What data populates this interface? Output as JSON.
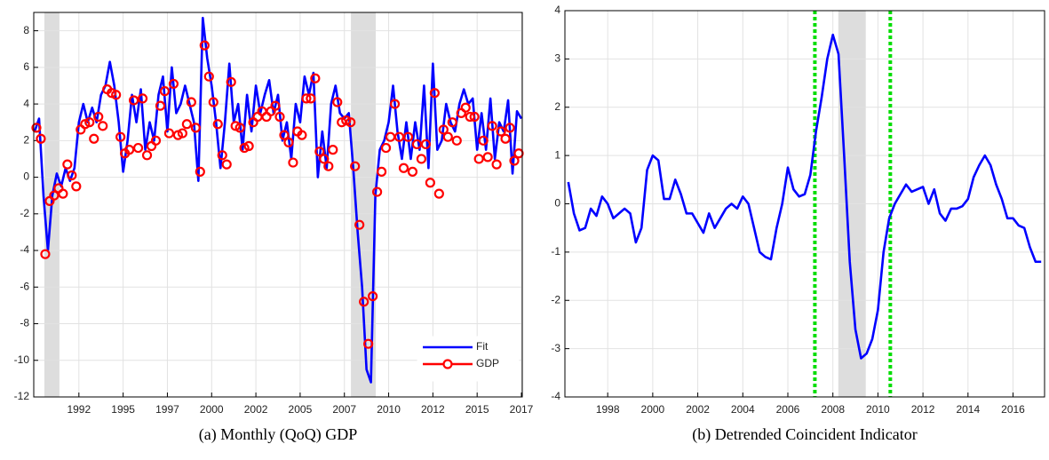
{
  "chart_data": [
    {
      "type": "line",
      "caption": "(a) Monthly (QoQ) GDP",
      "legend": "lower right",
      "grid": true,
      "xlim": [
        1989.45,
        2017.05
      ],
      "ylim": [
        -12,
        9
      ],
      "xticks": [
        {
          "value": 1992,
          "label": "1992"
        },
        {
          "value": 1994.5,
          "label": "1995"
        },
        {
          "value": 1997,
          "label": "1997"
        },
        {
          "value": 1999.5,
          "label": "2000"
        },
        {
          "value": 2002,
          "label": "2002"
        },
        {
          "value": 2004.5,
          "label": "2005"
        },
        {
          "value": 2007,
          "label": "2007"
        },
        {
          "value": 2009.5,
          "label": "2010"
        },
        {
          "value": 2012,
          "label": "2012"
        },
        {
          "value": 2014.5,
          "label": "2015"
        },
        {
          "value": 2017,
          "label": "2017"
        }
      ],
      "yticks": [
        -12,
        -10,
        -8,
        -6,
        -4,
        -2,
        0,
        2,
        4,
        6,
        8
      ],
      "shaded": [
        [
          1990.05,
          1990.9
        ],
        [
          2007.37,
          2008.77
        ]
      ],
      "shade_color": "#dddddd",
      "series": [
        {
          "name": "Fit",
          "color": "#0000ff",
          "marker": "none",
          "x": [
            1989.5,
            1989.75,
            1990,
            1990.25,
            1990.5,
            1990.75,
            1991,
            1991.25,
            1991.5,
            1991.75,
            1992,
            1992.25,
            1992.5,
            1992.75,
            1993,
            1993.25,
            1993.5,
            1993.75,
            1994,
            1994.25,
            1994.5,
            1994.75,
            1995,
            1995.25,
            1995.5,
            1995.75,
            1996,
            1996.25,
            1996.5,
            1996.75,
            1997,
            1997.25,
            1997.5,
            1997.75,
            1998,
            1998.25,
            1998.5,
            1998.75,
            1999,
            1999.25,
            1999.5,
            1999.75,
            2000,
            2000.25,
            2000.5,
            2000.75,
            2001,
            2001.25,
            2001.5,
            2001.75,
            2002,
            2002.25,
            2002.5,
            2002.75,
            2003,
            2003.25,
            2003.5,
            2003.75,
            2004,
            2004.25,
            2004.5,
            2004.75,
            2005,
            2005.25,
            2005.5,
            2005.75,
            2006,
            2006.25,
            2006.5,
            2006.75,
            2007,
            2007.25,
            2007.5,
            2007.75,
            2008,
            2008.25,
            2008.5,
            2008.75,
            2009,
            2009.25,
            2009.5,
            2009.75,
            2010,
            2010.25,
            2010.5,
            2010.75,
            2011,
            2011.25,
            2011.5,
            2011.75,
            2012,
            2012.25,
            2012.5,
            2012.75,
            2013,
            2013.25,
            2013.5,
            2013.75,
            2014,
            2014.25,
            2014.5,
            2014.75,
            2015,
            2015.25,
            2015.5,
            2015.75,
            2016,
            2016.25,
            2016.5,
            2016.75,
            2017
          ],
          "values": [
            2.5,
            3.2,
            -1.0,
            -4.0,
            -1.0,
            0.2,
            -0.5,
            0.5,
            -0.2,
            0.5,
            3.0,
            4.0,
            3.0,
            3.8,
            3.0,
            4.5,
            5.0,
            6.3,
            5.0,
            3.0,
            0.3,
            2.0,
            4.5,
            3.0,
            4.8,
            1.5,
            3.0,
            2.0,
            4.5,
            5.5,
            2.5,
            6.0,
            3.5,
            4.0,
            5.0,
            4.0,
            3.0,
            -0.2,
            8.7,
            6.5,
            5.0,
            3.0,
            0.5,
            3.0,
            6.2,
            3.0,
            4.0,
            1.5,
            4.5,
            2.5,
            5.0,
            3.5,
            4.5,
            5.3,
            3.5,
            4.5,
            2.0,
            3.0,
            1.0,
            4.0,
            3.0,
            5.5,
            4.5,
            5.7,
            0.0,
            2.5,
            0.5,
            4.0,
            5.0,
            3.5,
            3.2,
            3.5,
            0.5,
            -3.0,
            -6.0,
            -10.5,
            -11.2,
            -1.0,
            1.5,
            2.0,
            3.0,
            5.0,
            2.5,
            1.0,
            3.0,
            1.0,
            3.0,
            1.5,
            5.0,
            0.5,
            6.2,
            1.5,
            2.0,
            4.0,
            3.0,
            2.5,
            4.0,
            4.8,
            4.0,
            4.3,
            1.5,
            3.5,
            1.5,
            4.3,
            1.0,
            3.0,
            2.5,
            4.2,
            0.2,
            3.6,
            3.2
          ]
        },
        {
          "name": "GDP",
          "color": "#ff0000",
          "marker": "circle",
          "x": [
            1989.6,
            1989.85,
            1990.1,
            1990.35,
            1990.6,
            1990.85,
            1991.1,
            1991.35,
            1991.6,
            1991.85,
            1992.1,
            1992.35,
            1992.6,
            1992.85,
            1993.1,
            1993.35,
            1993.6,
            1993.85,
            1994.1,
            1994.35,
            1994.6,
            1994.85,
            1995.1,
            1995.35,
            1995.6,
            1995.85,
            1996.1,
            1996.35,
            1996.6,
            1996.85,
            1997.1,
            1997.35,
            1997.6,
            1997.85,
            1998.1,
            1998.35,
            1998.6,
            1998.85,
            1999.1,
            1999.35,
            1999.6,
            1999.85,
            2000.1,
            2000.35,
            2000.6,
            2000.85,
            2001.1,
            2001.35,
            2001.6,
            2001.85,
            2002.1,
            2002.35,
            2002.6,
            2002.85,
            2003.1,
            2003.35,
            2003.6,
            2003.85,
            2004.1,
            2004.35,
            2004.6,
            2004.85,
            2005.1,
            2005.35,
            2005.6,
            2005.85,
            2006.1,
            2006.35,
            2006.6,
            2006.85,
            2007.1,
            2007.35,
            2007.6,
            2007.85,
            2008.1,
            2008.35,
            2008.6,
            2008.85,
            2009.1,
            2009.35,
            2009.6,
            2009.85,
            2010.1,
            2010.35,
            2010.6,
            2010.85,
            2011.1,
            2011.35,
            2011.6,
            2011.85,
            2012.1,
            2012.35,
            2012.6,
            2012.85,
            2013.1,
            2013.35,
            2013.6,
            2013.85,
            2014.1,
            2014.35,
            2014.6,
            2014.85,
            2015.1,
            2015.35,
            2015.6,
            2015.85,
            2016.1,
            2016.35,
            2016.6,
            2016.85
          ],
          "values": [
            2.7,
            2.1,
            -4.2,
            -1.3,
            -1.0,
            -0.6,
            -0.9,
            0.7,
            0.1,
            -0.5,
            2.6,
            2.9,
            3.0,
            2.1,
            3.3,
            2.8,
            4.8,
            4.6,
            4.5,
            2.2,
            1.3,
            1.5,
            4.2,
            1.6,
            4.3,
            1.2,
            1.7,
            2.0,
            3.9,
            4.7,
            2.4,
            5.1,
            2.3,
            2.4,
            2.9,
            4.1,
            2.7,
            0.3,
            7.2,
            5.5,
            4.1,
            2.9,
            1.2,
            0.7,
            5.2,
            2.8,
            2.7,
            1.6,
            1.7,
            3.0,
            3.3,
            3.6,
            3.3,
            3.6,
            3.9,
            3.3,
            2.3,
            1.9,
            0.8,
            2.5,
            2.3,
            4.3,
            4.3,
            5.4,
            1.4,
            1.0,
            0.6,
            1.5,
            4.1,
            3.0,
            3.1,
            3.0,
            0.6,
            -2.6,
            -6.8,
            -9.1,
            -6.5,
            -0.8,
            0.3,
            1.6,
            2.2,
            4.0,
            2.2,
            0.5,
            2.2,
            0.3,
            1.8,
            1.0,
            1.8,
            -0.3,
            4.6,
            -0.9,
            2.6,
            2.2,
            3.0,
            2.0,
            3.5,
            3.8,
            3.3,
            3.3,
            1.0,
            2.0,
            1.1,
            2.8,
            0.7,
            2.5,
            2.1,
            2.7,
            0.9,
            1.3
          ]
        }
      ]
    },
    {
      "type": "line",
      "caption": "(b) Detrended Coincident Indicator",
      "grid": true,
      "xlim": [
        1996.1,
        2017.4
      ],
      "ylim": [
        -4,
        4
      ],
      "xticks": [
        1998,
        2000,
        2002,
        2004,
        2006,
        2008,
        2010,
        2012,
        2014,
        2016
      ],
      "yticks": [
        -4,
        -3,
        -2,
        -1,
        0,
        1,
        2,
        3,
        4
      ],
      "shaded": [
        [
          2008.24,
          2009.46
        ]
      ],
      "shade_color": "#dddddd",
      "vlines": [
        2007.2,
        2010.55
      ],
      "vline_color": "#00dd00",
      "series": [
        {
          "color": "#0000ff",
          "marker": "none",
          "x": [
            1996.25,
            1996.5,
            1996.75,
            1997,
            1997.25,
            1997.5,
            1997.75,
            1998,
            1998.25,
            1998.5,
            1998.75,
            1999,
            1999.25,
            1999.5,
            1999.75,
            2000,
            2000.25,
            2000.5,
            2000.75,
            2001,
            2001.25,
            2001.5,
            2001.75,
            2002,
            2002.25,
            2002.5,
            2002.75,
            2003,
            2003.25,
            2003.5,
            2003.75,
            2004,
            2004.25,
            2004.5,
            2004.75,
            2005,
            2005.25,
            2005.5,
            2005.75,
            2006,
            2006.25,
            2006.5,
            2006.75,
            2007,
            2007.25,
            2007.5,
            2007.75,
            2008,
            2008.25,
            2008.5,
            2008.75,
            2009,
            2009.25,
            2009.5,
            2009.75,
            2010,
            2010.25,
            2010.5,
            2010.75,
            2011,
            2011.25,
            2011.5,
            2011.75,
            2012,
            2012.25,
            2012.5,
            2012.75,
            2013,
            2013.25,
            2013.5,
            2013.75,
            2014,
            2014.25,
            2014.5,
            2014.75,
            2015,
            2015.25,
            2015.5,
            2015.75,
            2016,
            2016.25,
            2016.5,
            2016.75,
            2017,
            2017.25
          ],
          "values": [
            0.45,
            -0.2,
            -0.55,
            -0.5,
            -0.1,
            -0.25,
            0.15,
            0.0,
            -0.3,
            -0.2,
            -0.1,
            -0.2,
            -0.8,
            -0.5,
            0.7,
            1.0,
            0.9,
            0.1,
            0.1,
            0.5,
            0.2,
            -0.2,
            -0.2,
            -0.4,
            -0.6,
            -0.2,
            -0.5,
            -0.3,
            -0.1,
            0.0,
            -0.1,
            0.15,
            0.0,
            -0.5,
            -1.0,
            -1.1,
            -1.15,
            -0.5,
            0.0,
            0.75,
            0.3,
            0.15,
            0.2,
            0.6,
            1.5,
            2.2,
            3.0,
            3.5,
            3.1,
            1.0,
            -1.2,
            -2.6,
            -3.2,
            -3.1,
            -2.8,
            -2.2,
            -1.0,
            -0.3,
            0.0,
            0.2,
            0.4,
            0.25,
            0.3,
            0.35,
            0.0,
            0.3,
            -0.2,
            -0.35,
            -0.1,
            -0.1,
            -0.05,
            0.1,
            0.55,
            0.8,
            1.0,
            0.8,
            0.4,
            0.1,
            -0.3,
            -0.3,
            -0.45,
            -0.5,
            -0.9,
            -1.2,
            -1.2
          ]
        }
      ]
    }
  ]
}
